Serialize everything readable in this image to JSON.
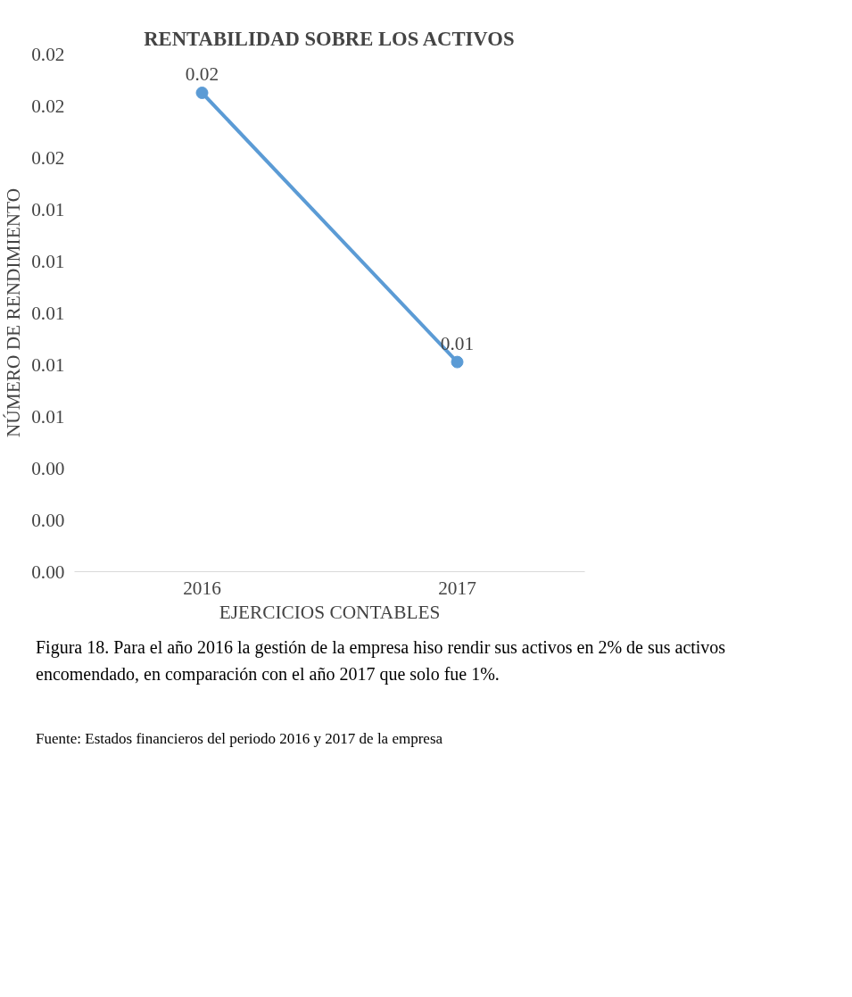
{
  "chart_data": {
    "type": "line",
    "title": "RENTABILIDAD SOBRE LOS ACTIVOS",
    "xlabel": "EJERCICIOS CONTABLES",
    "ylabel": "NÚMERO DE RENDIMIENTO",
    "categories": [
      "2016",
      "2017"
    ],
    "series": [
      {
        "color": "#5b9bd5",
        "values": [
          0.0185,
          0.0081
        ],
        "value_labels": [
          "0.02",
          "0.01"
        ]
      }
    ],
    "ylim": [
      0,
      0.02
    ],
    "yticks": [
      {
        "value": 0,
        "label": "0.00"
      },
      {
        "value": 0.002,
        "label": "0.00"
      },
      {
        "value": 0.004,
        "label": "0.00"
      },
      {
        "value": 0.006,
        "label": "0.01"
      },
      {
        "value": 0.008,
        "label": "0.01"
      },
      {
        "value": 0.01,
        "label": "0.01"
      },
      {
        "value": 0.012,
        "label": "0.01"
      },
      {
        "value": 0.014,
        "label": "0.01"
      },
      {
        "value": 0.016,
        "label": "0.02"
      },
      {
        "value": 0.018,
        "label": "0.02"
      },
      {
        "value": 0.02,
        "label": "0.02"
      }
    ],
    "marker": "circle",
    "grid": false,
    "annotations": [
      "Figura 18. Para el año 2016 la gestión de la empresa hiso rendir sus activos en 2% de sus activos encomendado, en comparación con el año 2017 que solo fue 1%.",
      "Fuente: Estados financieros del periodo 2016 y 2017 de la empresa"
    ]
  }
}
